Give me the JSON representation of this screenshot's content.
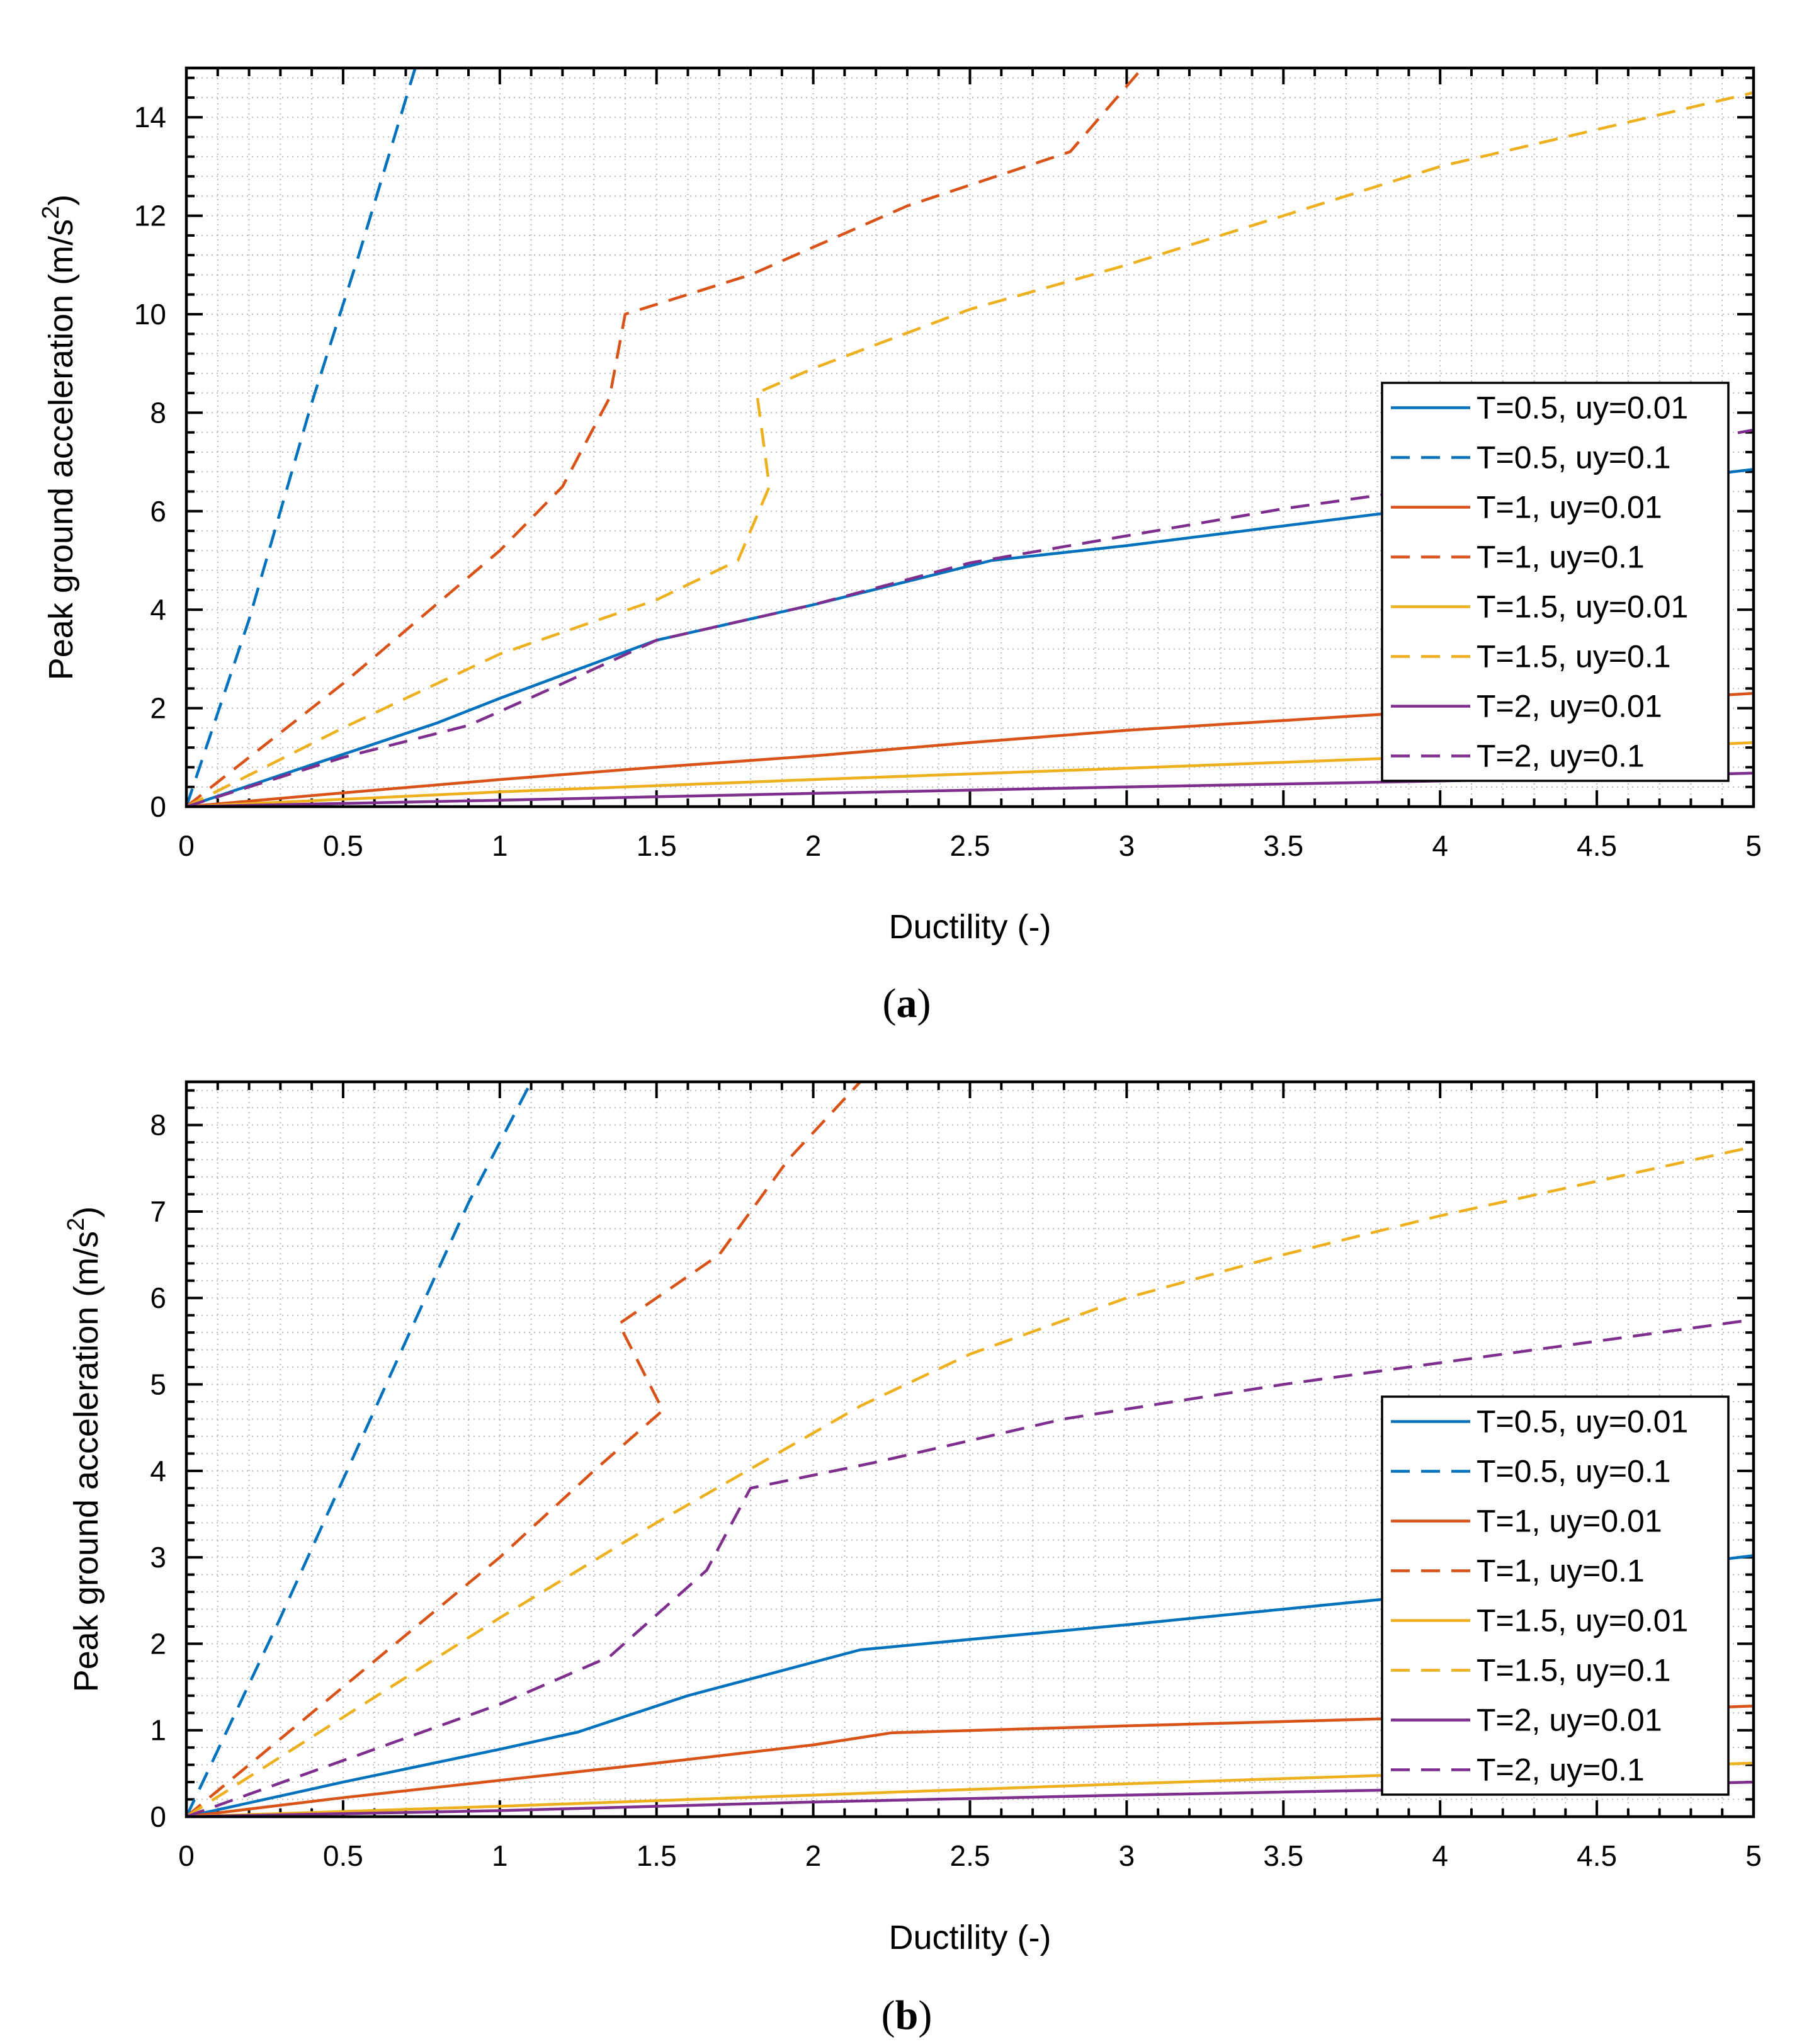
{
  "chart_data": [
    {
      "type": "line",
      "panel": "a",
      "caption_letter": "a",
      "title": "",
      "xlabel": "Ductility (-)",
      "ylabel_main": "Peak ground acceleration (m/s",
      "ylabel_sup": "2",
      "ylabel_close": ")",
      "xlim": [
        0,
        5
      ],
      "ylim": [
        0,
        15
      ],
      "xticks": [
        0,
        0.5,
        1,
        1.5,
        2,
        2.5,
        3,
        3.5,
        4,
        4.5,
        5
      ],
      "xtick_labels": [
        "0",
        "0.5",
        "1",
        "1.5",
        "2",
        "2.5",
        "3",
        "3.5",
        "4",
        "4.5",
        "5"
      ],
      "yticks": [
        0,
        2,
        4,
        6,
        8,
        10,
        12,
        14
      ],
      "ytick_labels": [
        "0",
        "2",
        "4",
        "6",
        "8",
        "10",
        "12",
        "14"
      ],
      "grid": true,
      "legend_position": "center-right",
      "series": [
        {
          "name": "T=0.5, uy=0.01",
          "color": "#0072BD",
          "dash": "solid",
          "x": [
            0,
            0.4,
            0.8,
            1.0,
            1.5,
            2.0,
            2.57,
            3.0,
            4.0,
            5.0
          ],
          "y": [
            0,
            0.85,
            1.7,
            2.2,
            3.38,
            4.1,
            5.0,
            5.3,
            6.1,
            6.85
          ]
        },
        {
          "name": "T=0.5, uy=0.1",
          "color": "#0072BD",
          "dash": "dashed",
          "x": [
            0,
            0.2,
            0.4,
            0.55,
            0.73
          ],
          "y": [
            0,
            3.8,
            8.2,
            11.2,
            15
          ]
        },
        {
          "name": "T=1, uy=0.01",
          "color": "#D95319",
          "dash": "solid",
          "x": [
            0,
            0.5,
            1.0,
            1.5,
            2.0,
            2.5,
            3.0,
            3.5,
            4.0,
            5.0
          ],
          "y": [
            0,
            0.28,
            0.55,
            0.8,
            1.03,
            1.3,
            1.55,
            1.75,
            1.95,
            2.3
          ]
        },
        {
          "name": "T=1, uy=0.1",
          "color": "#D95319",
          "dash": "dashed",
          "x": [
            0,
            0.5,
            1.0,
            1.2,
            1.35,
            1.4,
            1.8,
            2.3,
            2.82,
            3.05
          ],
          "y": [
            0,
            2.5,
            5.2,
            6.5,
            8.3,
            10.0,
            10.8,
            12.2,
            13.3,
            15
          ]
        },
        {
          "name": "T=1.5, uy=0.01",
          "color": "#EDB120",
          "dash": "solid",
          "x": [
            0,
            0.5,
            1.0,
            2.0,
            3.0,
            4.0,
            5.0
          ],
          "y": [
            0,
            0.15,
            0.3,
            0.55,
            0.78,
            1.02,
            1.3
          ]
        },
        {
          "name": "T=1.5, uy=0.1",
          "color": "#EDB120",
          "dash": "dashed",
          "x": [
            0,
            0.5,
            1.0,
            1.5,
            1.76,
            1.86,
            1.82,
            2.0,
            2.5,
            3.0,
            3.5,
            4.0,
            5.0
          ],
          "y": [
            0,
            1.6,
            3.1,
            4.2,
            5.0,
            6.5,
            8.4,
            8.9,
            10.1,
            11.0,
            12.0,
            13.0,
            14.5
          ]
        },
        {
          "name": "T=2, uy=0.01",
          "color": "#7E2F8E",
          "dash": "solid",
          "x": [
            0,
            1.0,
            2.0,
            3.0,
            4.0,
            5.0
          ],
          "y": [
            0,
            0.13,
            0.27,
            0.4,
            0.52,
            0.68
          ]
        },
        {
          "name": "T=2, uy=0.1",
          "color": "#7E2F8E",
          "dash": "dashed",
          "x": [
            0,
            0.5,
            0.9,
            1.2,
            1.5,
            2.0,
            2.5,
            3.0,
            3.5,
            4.0,
            5.0
          ],
          "y": [
            0,
            1.0,
            1.65,
            2.5,
            3.38,
            4.1,
            4.95,
            5.5,
            6.05,
            6.5,
            7.65
          ]
        }
      ]
    },
    {
      "type": "line",
      "panel": "b",
      "caption_letter": "b",
      "title": "",
      "xlabel": "Ductility (-)",
      "ylabel_main": "Peak ground acceleration (m/s",
      "ylabel_sup": "2",
      "ylabel_close": ")",
      "xlim": [
        0,
        5
      ],
      "ylim": [
        0,
        8.5
      ],
      "xticks": [
        0,
        0.5,
        1,
        1.5,
        2,
        2.5,
        3,
        3.5,
        4,
        4.5,
        5
      ],
      "xtick_labels": [
        "0",
        "0.5",
        "1",
        "1.5",
        "2",
        "2.5",
        "3",
        "3.5",
        "4",
        "4.5",
        "5"
      ],
      "yticks": [
        0,
        1,
        2,
        3,
        4,
        5,
        6,
        7,
        8
      ],
      "ytick_labels": [
        "0",
        "1",
        "2",
        "3",
        "4",
        "5",
        "6",
        "7",
        "8"
      ],
      "grid": true,
      "legend_position": "center-right",
      "series": [
        {
          "name": "T=0.5, uy=0.01",
          "color": "#0072BD",
          "dash": "solid",
          "x": [
            0,
            0.5,
            1.0,
            1.25,
            1.6,
            2.15,
            2.5,
            3.0,
            3.5,
            4.0,
            5.0
          ],
          "y": [
            0,
            0.4,
            0.78,
            0.98,
            1.4,
            1.93,
            2.05,
            2.22,
            2.4,
            2.58,
            3.02
          ]
        },
        {
          "name": "T=0.5, uy=0.1",
          "color": "#0072BD",
          "dash": "dashed",
          "x": [
            0,
            0.3,
            0.6,
            0.9,
            1.1
          ],
          "y": [
            0,
            2.3,
            4.7,
            7.1,
            8.5
          ]
        },
        {
          "name": "T=1, uy=0.01",
          "color": "#D95319",
          "dash": "solid",
          "x": [
            0,
            0.5,
            1.0,
            1.5,
            2.0,
            2.25,
            3.0,
            4.0,
            5.0
          ],
          "y": [
            0,
            0.22,
            0.42,
            0.62,
            0.83,
            0.97,
            1.05,
            1.15,
            1.28
          ]
        },
        {
          "name": "T=1, uy=0.1",
          "color": "#D95319",
          "dash": "dashed",
          "x": [
            0,
            0.5,
            1.0,
            1.3,
            1.52,
            1.38,
            1.7,
            1.92,
            2.15
          ],
          "y": [
            0,
            1.5,
            3.0,
            4.0,
            4.7,
            5.7,
            6.5,
            7.6,
            8.5
          ]
        },
        {
          "name": "T=1.5, uy=0.01",
          "color": "#EDB120",
          "dash": "solid",
          "x": [
            0,
            1.0,
            2.0,
            3.0,
            4.0,
            5.0
          ],
          "y": [
            0,
            0.12,
            0.25,
            0.38,
            0.5,
            0.62
          ]
        },
        {
          "name": "T=1.5, uy=0.1",
          "color": "#EDB120",
          "dash": "dashed",
          "x": [
            0,
            0.5,
            1.0,
            1.5,
            2.15,
            2.5,
            3.0,
            3.5,
            4.0,
            5.0
          ],
          "y": [
            0,
            1.15,
            2.3,
            3.4,
            4.75,
            5.35,
            6.0,
            6.5,
            6.95,
            7.75
          ]
        },
        {
          "name": "T=2, uy=0.01",
          "color": "#7E2F8E",
          "dash": "solid",
          "x": [
            0,
            1.0,
            2.0,
            3.0,
            4.0,
            5.0
          ],
          "y": [
            0,
            0.07,
            0.17,
            0.25,
            0.32,
            0.4
          ]
        },
        {
          "name": "T=2, uy=0.1",
          "color": "#7E2F8E",
          "dash": "dashed",
          "x": [
            0,
            0.5,
            1.0,
            1.35,
            1.66,
            1.8,
            2.2,
            2.8,
            3.5,
            4.0,
            5.0
          ],
          "y": [
            0,
            0.65,
            1.3,
            1.85,
            2.85,
            3.8,
            4.1,
            4.6,
            5.0,
            5.25,
            5.75
          ]
        }
      ]
    }
  ]
}
